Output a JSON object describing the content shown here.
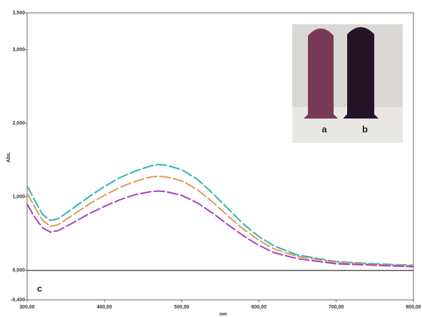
{
  "chart_data": {
    "type": "line",
    "xlabel": "nm",
    "ylabel": "Abs.",
    "annotation": "c",
    "inset_labels": [
      "a",
      "b"
    ],
    "x": [
      300,
      310,
      320,
      330,
      340,
      360,
      380,
      400,
      420,
      440,
      460,
      470,
      480,
      500,
      520,
      540,
      560,
      580,
      600,
      620,
      650,
      700,
      750,
      800
    ],
    "series": [
      {
        "color": "#2fb3b3",
        "values": [
          1.15,
          0.95,
          0.76,
          0.68,
          0.7,
          0.85,
          1.0,
          1.14,
          1.26,
          1.35,
          1.42,
          1.44,
          1.43,
          1.37,
          1.24,
          1.05,
          0.84,
          0.63,
          0.46,
          0.33,
          0.21,
          0.12,
          0.09,
          0.07
        ]
      },
      {
        "color": "#d99a5a",
        "values": [
          1.05,
          0.86,
          0.68,
          0.6,
          0.62,
          0.76,
          0.9,
          1.02,
          1.13,
          1.21,
          1.27,
          1.28,
          1.27,
          1.22,
          1.1,
          0.93,
          0.74,
          0.56,
          0.41,
          0.29,
          0.19,
          0.11,
          0.08,
          0.06
        ]
      },
      {
        "color": "#a63fc4",
        "values": [
          0.9,
          0.72,
          0.58,
          0.52,
          0.54,
          0.65,
          0.77,
          0.87,
          0.96,
          1.03,
          1.07,
          1.08,
          1.07,
          1.02,
          0.92,
          0.78,
          0.62,
          0.47,
          0.34,
          0.24,
          0.16,
          0.09,
          0.07,
          0.05
        ]
      }
    ],
    "xlim": [
      300,
      800
    ],
    "xticks": [
      {
        "value": 300,
        "label": "300,00"
      },
      {
        "value": 400,
        "label": "400,00"
      },
      {
        "value": 500,
        "label": "500,00"
      },
      {
        "value": 600,
        "label": "600,00"
      },
      {
        "value": 700,
        "label": "700,00"
      },
      {
        "value": 800,
        "label": "800,00"
      }
    ],
    "ylim": [
      -0.4,
      3.5
    ],
    "yticks": [
      {
        "value": -0.4,
        "label": "-0,400"
      },
      {
        "value": 0,
        "label": "0,000"
      },
      {
        "value": 1,
        "label": "1,000"
      },
      {
        "value": 2,
        "label": "2,000"
      },
      {
        "value": 3,
        "label": "3,000"
      },
      {
        "value": 3.5,
        "label": "3,500"
      }
    ],
    "zero_line": true
  }
}
